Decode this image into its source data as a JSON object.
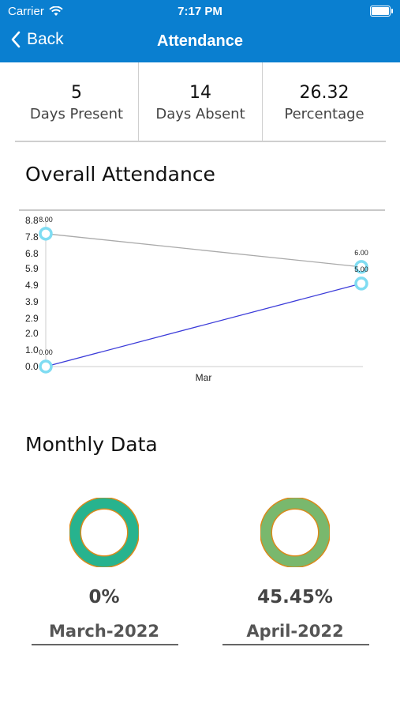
{
  "status": {
    "carrier": "Carrier",
    "time": "7:17 PM"
  },
  "nav": {
    "back_label": "Back",
    "title": "Attendance"
  },
  "stats": [
    {
      "value": "5",
      "label": "Days Present"
    },
    {
      "value": "14",
      "label": "Days Absent"
    },
    {
      "value": "26.32",
      "label": "Percentage"
    }
  ],
  "overall": {
    "title": "Overall Attendance"
  },
  "monthly": {
    "title": "Monthly Data",
    "items": [
      {
        "percent": "0%",
        "month": "March-2022",
        "color": "#27b38e"
      },
      {
        "percent": "45.45%",
        "month": "April-2022",
        "color": "#79b86d"
      }
    ]
  },
  "chart_data": {
    "type": "line",
    "categories": [
      "",
      "Mar"
    ],
    "ytick_labels": [
      "0.0",
      "1.0",
      "2.0",
      "2.9",
      "3.9",
      "4.9",
      "5.9",
      "6.8",
      "7.8",
      "8.8"
    ],
    "ylim": [
      0,
      8.8
    ],
    "series": [
      {
        "values": [
          8.0,
          6.0
        ],
        "labels": [
          "8.00",
          "6.00"
        ],
        "color": "#aaaaaa"
      },
      {
        "values": [
          0.0,
          5.0
        ],
        "labels": [
          "0.00",
          "5.00"
        ],
        "color": "#3b3bd9"
      }
    ],
    "marker_color": "#7fdcf2"
  }
}
